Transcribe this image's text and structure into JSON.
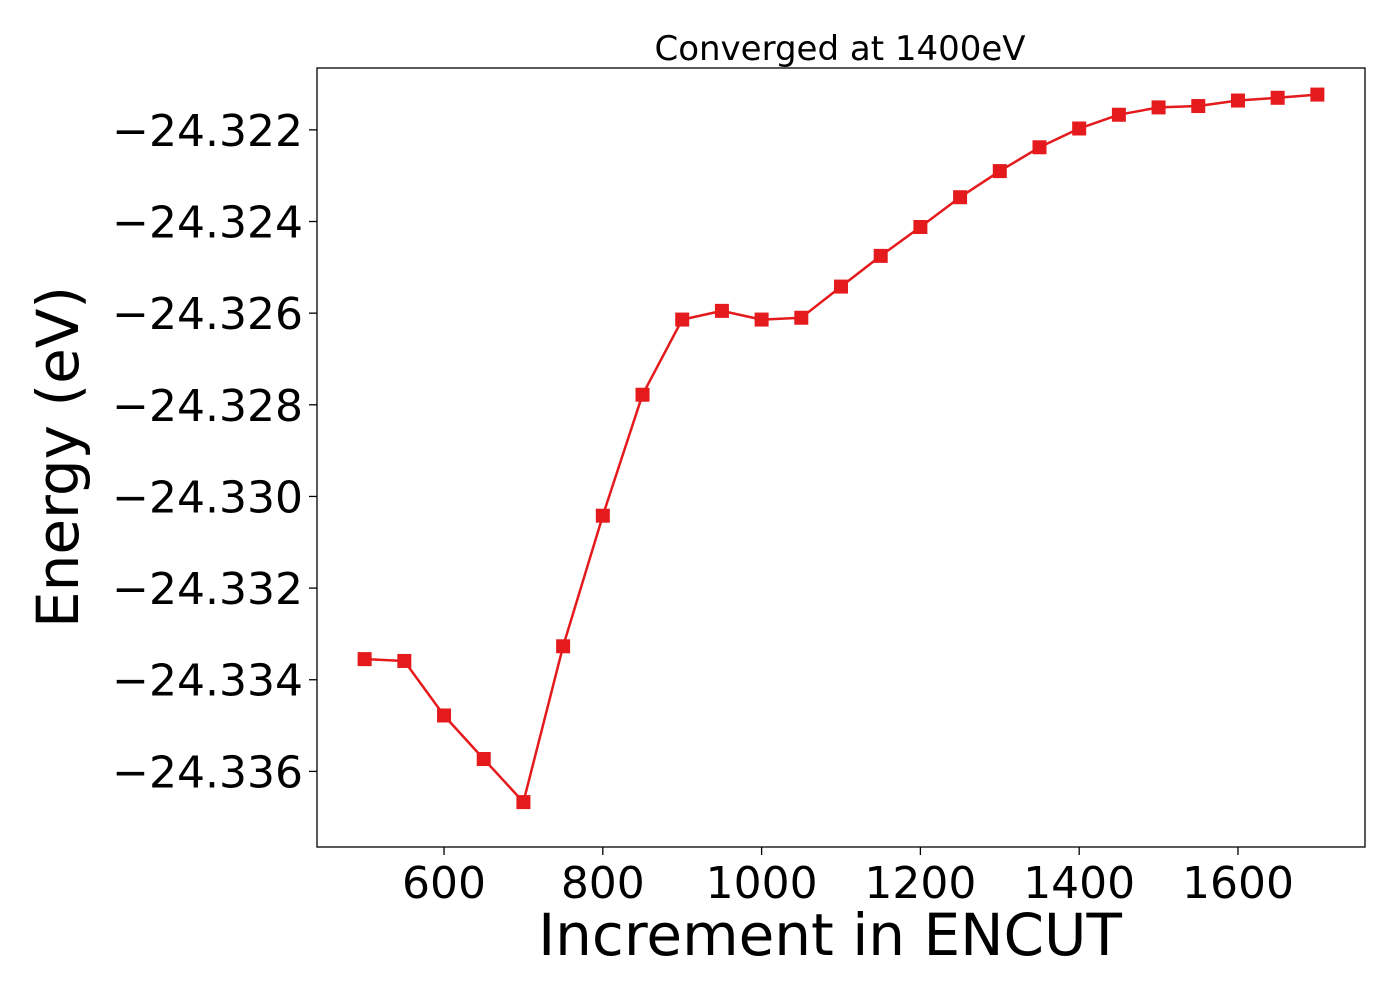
{
  "chart_data": {
    "type": "line",
    "title": "Converged at 1400eV",
    "xlabel": "Increment in ENCUT",
    "ylabel": "Energy (eV)",
    "xlim": [
      440,
      1760
    ],
    "ylim": [
      -24.33765,
      -24.32065
    ],
    "xticks": [
      600,
      800,
      1000,
      1200,
      1400,
      1600
    ],
    "xtick_labels": [
      "600",
      "800",
      "1000",
      "1200",
      "1400",
      "1600"
    ],
    "yticks": [
      -24.322,
      -24.324,
      -24.326,
      -24.328,
      -24.33,
      -24.332,
      -24.334,
      -24.336
    ],
    "ytick_labels": [
      "−24.322",
      "−24.324",
      "−24.326",
      "−24.328",
      "−24.330",
      "−24.332",
      "−24.334",
      "−24.336"
    ],
    "grid": false,
    "legend": false,
    "marker": "square",
    "color": "#e41a1c",
    "series": [
      {
        "x": [
          500,
          550,
          600,
          650,
          700,
          750,
          800,
          850,
          900,
          950,
          1000,
          1050,
          1100,
          1150,
          1200,
          1250,
          1300,
          1350,
          1400,
          1450,
          1500,
          1550,
          1600,
          1650,
          1700
        ],
        "values": [
          -24.33355,
          -24.33359,
          -24.33478,
          -24.33573,
          -24.33667,
          -24.33327,
          -24.33042,
          -24.32778,
          -24.32614,
          -24.32595,
          -24.32614,
          -24.3261,
          -24.32542,
          -24.32475,
          -24.32412,
          -24.32347,
          -24.3229,
          -24.32238,
          -24.32197,
          -24.32167,
          -24.32151,
          -24.32148,
          -24.32136,
          -24.3213,
          -24.32123
        ]
      }
    ]
  }
}
